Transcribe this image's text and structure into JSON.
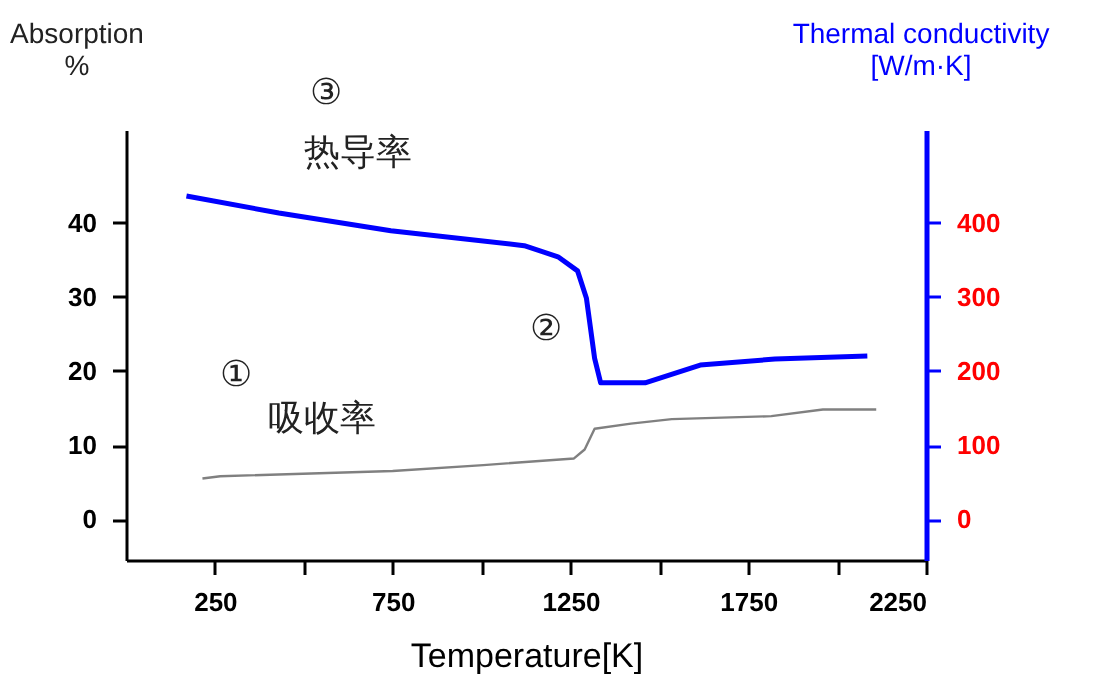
{
  "chart_data": {
    "type": "line",
    "xlabel": "Temperature[K]",
    "ylabel": "Absorption %",
    "y2label": "Thermal conductivity [W/m·K]",
    "x": [
      170,
      430,
      745,
      1120,
      1215,
      1270,
      1295,
      1318,
      1335,
      1460,
      1615,
      1825,
      2085
    ],
    "series": [
      {
        "name": "吸收率",
        "color": "#808080",
        "x": [
          215,
          265,
          750,
          1005,
          1260,
          1290,
          1318,
          1420,
          1535,
          1815,
          1960,
          2110
        ],
        "values": [
          5.5,
          5.8,
          6.5,
          7.3,
          8.2,
          9.4,
          12.2,
          12.9,
          13.5,
          13.9,
          14.8,
          14.8
        ]
      },
      {
        "name": "热导率",
        "color": "#0000ff",
        "axis": "y2",
        "values": [
          436,
          413,
          389,
          369,
          354,
          335,
          298,
          217,
          184,
          184,
          208,
          216,
          220
        ]
      }
    ],
    "xlim": [
      0,
      2250
    ],
    "xticks": [
      250,
      {
        "value": 500,
        "label": null
      },
      750,
      {
        "value": 1000,
        "label": null
      },
      1250,
      {
        "value": 1500,
        "label": null
      },
      1750,
      {
        "value": 2000,
        "label": null
      },
      2250
    ],
    "ylim": [
      -5.5,
      52.5
    ],
    "yticks": [
      0,
      10,
      20,
      30,
      40
    ],
    "y2lim": [
      -55,
      525
    ],
    "y2ticks": [
      0,
      100,
      200,
      300,
      400
    ],
    "grid": false,
    "legend": false,
    "marker": "none",
    "line_style": "solid",
    "annotations": [
      "①",
      "②",
      "③"
    ]
  }
}
